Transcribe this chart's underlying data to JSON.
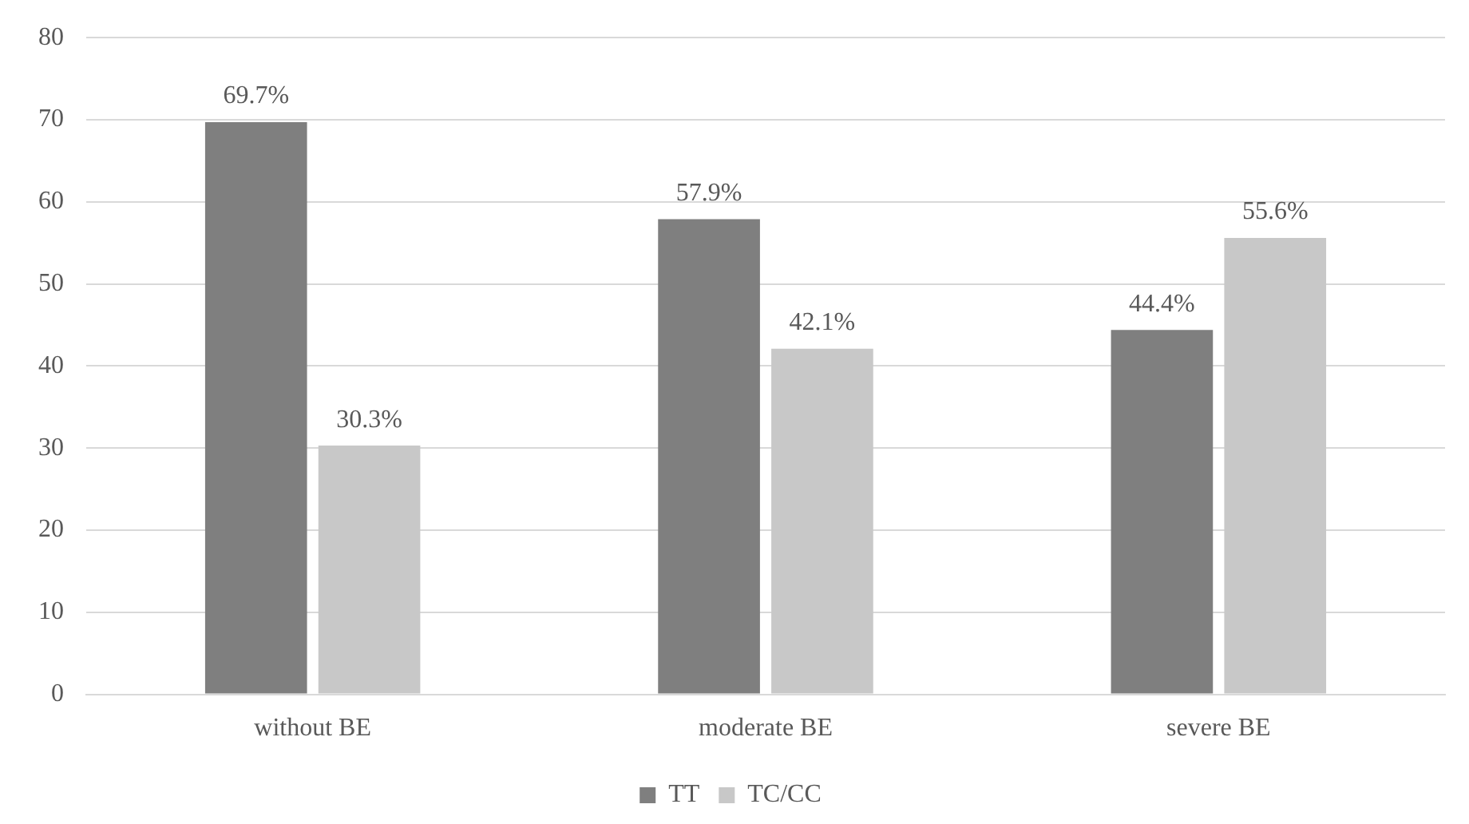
{
  "chart_data": {
    "type": "bar",
    "categories": [
      "without BE",
      "moderate BE",
      "severe BE"
    ],
    "series": [
      {
        "name": "TT",
        "color": "#7f7f7f",
        "values": [
          69.7,
          57.9,
          44.4
        ],
        "value_labels": [
          "69.7%",
          "57.9%",
          "44.4%"
        ]
      },
      {
        "name": "TC/CC",
        "color": "#c8c8c8",
        "values": [
          30.3,
          42.1,
          55.6
        ],
        "value_labels": [
          "30.3%",
          "42.1%",
          "55.6%"
        ]
      }
    ],
    "ylim": [
      0,
      80
    ],
    "yticks": [
      0,
      10,
      20,
      30,
      40,
      50,
      60,
      70,
      80
    ],
    "grid": "y",
    "legend": "bottom"
  }
}
